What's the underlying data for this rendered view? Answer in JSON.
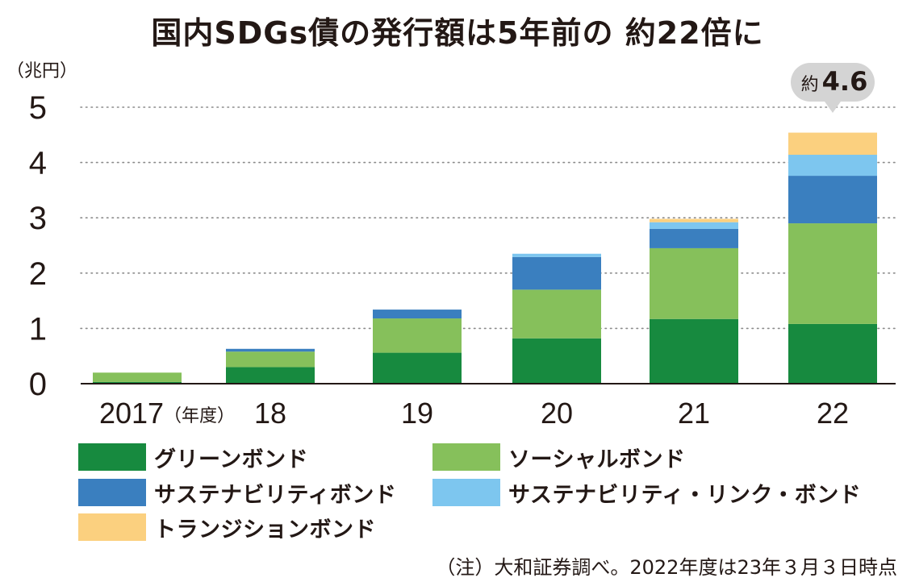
{
  "chart_data": {
    "type": "bar",
    "stacked": true,
    "title": "国内SDGs債の発行額は5年前の 約22倍に",
    "ylabel": "（兆円）",
    "x_unit_label": "（年度）",
    "categories": [
      "2017",
      "18",
      "19",
      "20",
      "21",
      "22"
    ],
    "ylim": [
      0,
      5
    ],
    "yticks": [
      "0",
      "1",
      "2",
      "3",
      "4",
      "5"
    ],
    "grid": "horizontal-dotted",
    "series": [
      {
        "name": "グリーンボンド",
        "color": "#178a3f",
        "values": [
          0.03,
          0.3,
          0.56,
          0.82,
          1.17,
          1.08
        ]
      },
      {
        "name": "ソーシャルボンド",
        "color": "#86c05b",
        "values": [
          0.17,
          0.28,
          0.62,
          0.88,
          1.28,
          1.82
        ]
      },
      {
        "name": "サステナビリティボンド",
        "color": "#3a7fbf",
        "values": [
          0,
          0.05,
          0.16,
          0.59,
          0.35,
          0.86
        ]
      },
      {
        "name": "サステナビリティ・リンク・ボンド",
        "color": "#7dc6ef",
        "values": [
          0,
          0,
          0,
          0.06,
          0.12,
          0.38
        ]
      },
      {
        "name": "トランジションボンド",
        "color": "#fbd07f",
        "values": [
          0,
          0,
          0,
          0,
          0.06,
          0.4
        ]
      }
    ],
    "annotation": {
      "category": "22",
      "prefix": "約",
      "value": "4.6"
    },
    "legend_position": "bottom",
    "note": "（注）大和証券調べ。2022年度は23年３月３日時点"
  }
}
